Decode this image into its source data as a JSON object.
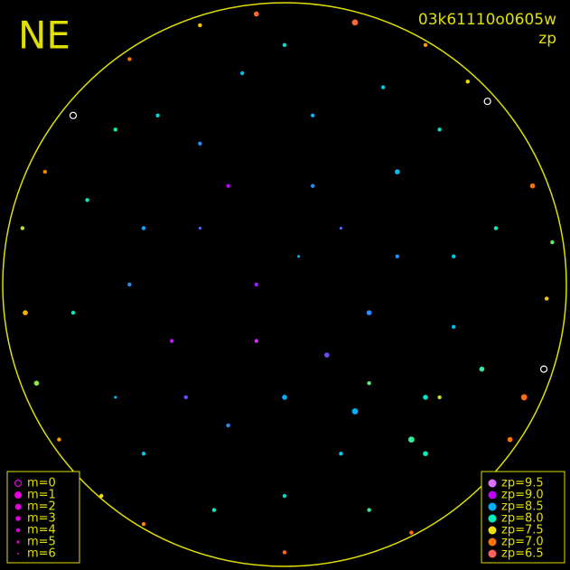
{
  "chart_data": {
    "type": "scatter",
    "title": "NE",
    "subtitle": "03k61110o0605w",
    "color_label": "zp",
    "xlim": [
      -1,
      1
    ],
    "ylim": [
      -1,
      1
    ],
    "x": [
      -0.3,
      0.1,
      0.4,
      -0.5,
      0.2,
      -0.1,
      0.3,
      -0.4,
      0.0,
      0.5,
      -0.2,
      0.6,
      -0.6,
      0.2,
      -0.3,
      0.1,
      -0.15,
      0.35,
      -0.45,
      0.55,
      -0.7,
      0.75,
      0.7,
      -0.75,
      -0.1,
      0.15,
      0.25,
      0.45,
      0.5,
      -0.5,
      0.0,
      -0.25,
      0.3,
      -0.35,
      0.05,
      -0.2,
      0.4,
      -0.55,
      0.6,
      0.0,
      -0.55,
      0.5,
      -0.85,
      0.88,
      -0.92,
      0.93,
      -0.8,
      0.8,
      -0.5,
      0.45,
      0.0,
      -0.1,
      -0.75,
      0.72,
      0.65,
      -0.3,
      0.25,
      -0.93,
      0.95,
      -0.65,
      0.85,
      0.3,
      0.55,
      -0.6,
      0.92,
      -0.88
    ],
    "y": [
      0.5,
      0.6,
      0.4,
      0.2,
      0.2,
      0.0,
      -0.1,
      -0.2,
      -0.4,
      -0.4,
      -0.5,
      0.1,
      -0.4,
      -0.6,
      0.2,
      0.35,
      0.75,
      0.7,
      0.6,
      0.55,
      0.3,
      0.2,
      -0.3,
      -0.1,
      -0.2,
      -0.25,
      -0.45,
      -0.55,
      -0.6,
      -0.6,
      -0.75,
      -0.8,
      -0.8,
      -0.4,
      0.1,
      0.35,
      0.1,
      0.0,
      -0.15,
      0.85,
      0.8,
      0.85,
      0.4,
      0.35,
      -0.1,
      -0.05,
      -0.55,
      -0.55,
      -0.85,
      -0.88,
      -0.95,
      0.96,
      0.6,
      0.65,
      0.72,
      0.92,
      0.93,
      0.2,
      0.15,
      -0.75,
      -0.4,
      -0.35,
      -0.4,
      0.55,
      -0.3,
      -0.35
    ],
    "zp": [
      8.6,
      8.5,
      8.4,
      8.5,
      8.7,
      8.9,
      8.6,
      9.1,
      8.5,
      8.1,
      8.6,
      8.3,
      8.4,
      8.3,
      8.7,
      8.6,
      8.4,
      8.3,
      8.2,
      8.1,
      8.0,
      8.0,
      7.9,
      8.0,
      9.2,
      8.8,
      8.5,
      7.9,
      8.0,
      8.3,
      8.2,
      8.0,
      7.9,
      8.8,
      8.5,
      9.0,
      8.6,
      8.6,
      8.4,
      8.1,
      7.0,
      7.2,
      7.1,
      7.0,
      7.3,
      7.4,
      7.2,
      7.0,
      7.1,
      7.0,
      6.9,
      6.8,
      7.0,
      6.9,
      7.5,
      7.4,
      6.7,
      7.6,
      7.8,
      7.5,
      6.9,
      7.8,
      7.6,
      8.0,
      7.0,
      7.7
    ],
    "m": [
      4,
      4,
      3,
      4,
      5,
      4,
      3,
      4,
      3,
      3,
      4,
      4,
      5,
      4,
      5,
      4,
      4,
      4,
      4,
      4,
      4,
      4,
      3,
      4,
      4,
      3,
      2,
      2,
      3,
      4,
      4,
      4,
      4,
      4,
      5,
      4,
      4,
      4,
      4,
      4,
      4,
      4,
      4,
      3,
      3,
      4,
      4,
      3,
      4,
      4,
      4,
      3,
      0,
      0,
      4,
      4,
      2,
      4,
      4,
      4,
      2,
      4,
      4,
      4,
      0,
      3
    ],
    "size_legend": [
      {
        "value": 0,
        "label": "m=0"
      },
      {
        "value": 1,
        "label": "m=1"
      },
      {
        "value": 2,
        "label": "m=2"
      },
      {
        "value": 3,
        "label": "m=3"
      },
      {
        "value": 4,
        "label": "m=4"
      },
      {
        "value": 5,
        "label": "m=5"
      },
      {
        "value": 6,
        "label": "m=6"
      }
    ],
    "size_legend_color": "#e000e0",
    "color_legend": [
      {
        "value": 9.5,
        "label": "zp=9.5",
        "color": "#e070ff"
      },
      {
        "value": 9.0,
        "label": "zp=9.0",
        "color": "#c000ff"
      },
      {
        "value": 8.5,
        "label": "zp=8.5",
        "color": "#00b0ff"
      },
      {
        "value": 8.0,
        "label": "zp=8.0",
        "color": "#00f0c0"
      },
      {
        "value": 7.5,
        "label": "zp=7.5",
        "color": "#f0e000"
      },
      {
        "value": 7.0,
        "label": "zp=7.0",
        "color": "#ff7000"
      },
      {
        "value": 6.5,
        "label": "zp=6.5",
        "color": "#ff6060"
      }
    ],
    "frame_color": "#e0e000"
  }
}
